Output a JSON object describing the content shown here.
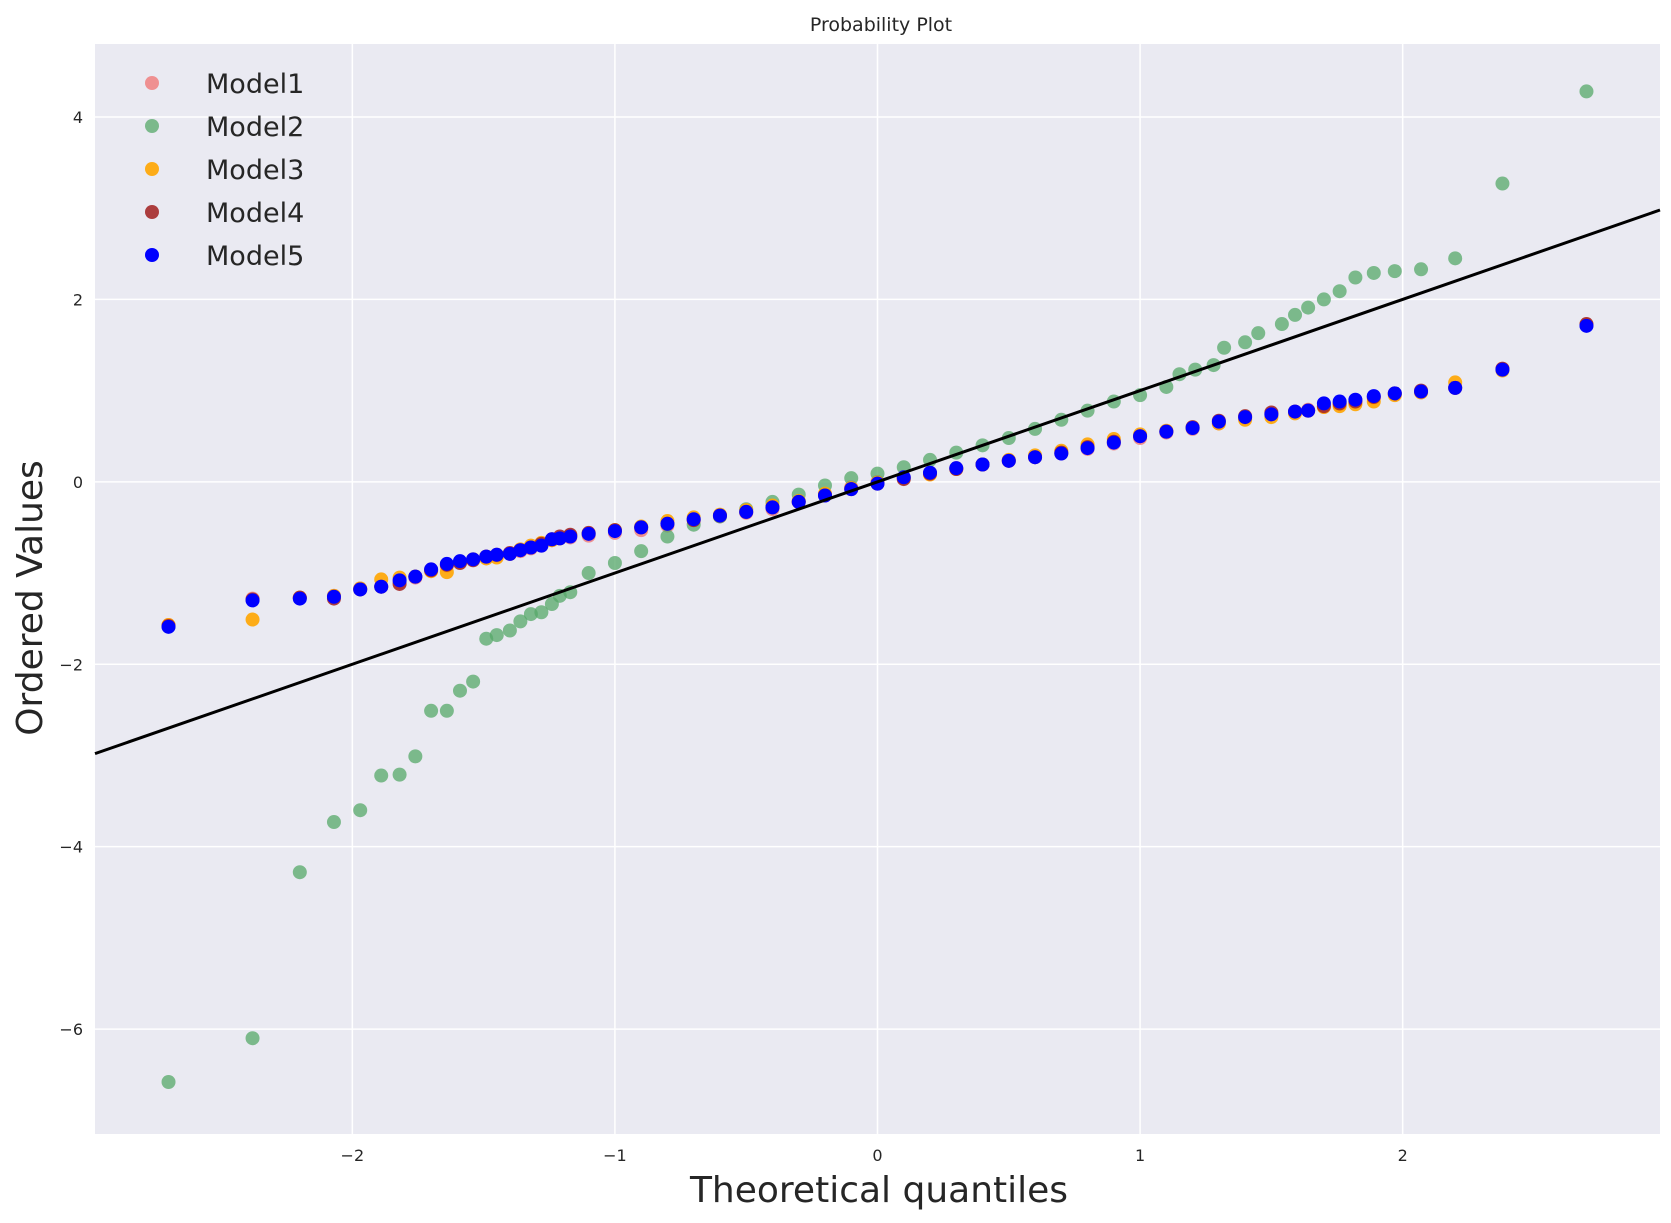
{
  "chart_data": {
    "type": "scatter",
    "title": "Probability Plot",
    "xlabel": "Theoretical quantiles",
    "ylabel": "Ordered Values",
    "xlim": [
      -2.98,
      2.98
    ],
    "ylim": [
      -7.15,
      4.8
    ],
    "xticks": [
      -2,
      -1,
      0,
      1,
      2
    ],
    "xtick_labels": [
      "−2",
      "−1",
      "0",
      "1",
      "2"
    ],
    "yticks": [
      -6,
      -4,
      -2,
      0,
      2,
      4
    ],
    "ytick_labels": [
      "−6",
      "−4",
      "−2",
      "0",
      "2",
      "4"
    ],
    "grid": true,
    "legend_position": "top-left",
    "background": "#eaeaf2",
    "fit_line": {
      "slope": 1.0,
      "intercept": 0.0,
      "color": "#000000"
    },
    "series": [
      {
        "name": "Model1",
        "color": "#f08080",
        "points": [
          [
            -2.7,
            -1.57
          ],
          [
            -2.38,
            -1.28
          ],
          [
            -2.2,
            -1.27
          ],
          [
            -2.07,
            -1.25
          ],
          [
            -1.97,
            -1.17
          ],
          [
            -1.89,
            -1.15
          ],
          [
            -1.82,
            -1.1
          ],
          [
            -1.76,
            -1.05
          ],
          [
            -1.7,
            -0.96
          ],
          [
            -1.64,
            -0.92
          ],
          [
            -1.59,
            -0.88
          ],
          [
            -1.54,
            -0.85
          ],
          [
            -1.49,
            -0.82
          ],
          [
            -1.45,
            -0.81
          ],
          [
            -1.4,
            -0.79
          ],
          [
            -1.36,
            -0.76
          ],
          [
            -1.32,
            -0.73
          ],
          [
            -1.28,
            -0.7
          ],
          [
            -1.24,
            -0.64
          ],
          [
            -1.21,
            -0.62
          ],
          [
            -1.17,
            -0.61
          ],
          [
            -1.1,
            -0.59
          ],
          [
            -1.0,
            -0.56
          ],
          [
            -0.9,
            -0.53
          ],
          [
            -0.8,
            -0.48
          ],
          [
            -0.7,
            -0.42
          ],
          [
            -0.6,
            -0.38
          ],
          [
            -0.5,
            -0.34
          ],
          [
            -0.4,
            -0.3
          ],
          [
            -0.3,
            -0.22
          ],
          [
            -0.2,
            -0.14
          ],
          [
            -0.1,
            -0.06
          ],
          [
            0.0,
            0.0
          ],
          [
            0.1,
            0.05
          ],
          [
            0.2,
            0.1
          ],
          [
            0.3,
            0.15
          ],
          [
            0.4,
            0.19
          ],
          [
            0.5,
            0.23
          ],
          [
            0.6,
            0.27
          ],
          [
            0.7,
            0.31
          ],
          [
            0.8,
            0.36
          ],
          [
            0.9,
            0.42
          ],
          [
            1.0,
            0.48
          ],
          [
            1.1,
            0.54
          ],
          [
            1.2,
            0.58
          ],
          [
            1.3,
            0.64
          ],
          [
            1.4,
            0.7
          ],
          [
            1.5,
            0.74
          ],
          [
            1.59,
            0.77
          ],
          [
            1.64,
            0.79
          ],
          [
            1.7,
            0.82
          ],
          [
            1.76,
            0.85
          ],
          [
            1.82,
            0.88
          ],
          [
            1.89,
            0.92
          ],
          [
            1.97,
            0.96
          ],
          [
            2.07,
            0.98
          ],
          [
            2.2,
            1.03
          ],
          [
            2.38,
            1.24
          ],
          [
            2.7,
            1.72
          ]
        ]
      },
      {
        "name": "Model2",
        "color": "#55a868",
        "points": [
          [
            -2.7,
            -6.58
          ],
          [
            -2.38,
            -6.1
          ],
          [
            -2.2,
            -4.28
          ],
          [
            -2.07,
            -3.73
          ],
          [
            -1.97,
            -3.6
          ],
          [
            -1.89,
            -3.22
          ],
          [
            -1.82,
            -3.21
          ],
          [
            -1.76,
            -3.01
          ],
          [
            -1.7,
            -2.51
          ],
          [
            -1.64,
            -2.51
          ],
          [
            -1.59,
            -2.29
          ],
          [
            -1.54,
            -2.19
          ],
          [
            -1.49,
            -1.72
          ],
          [
            -1.45,
            -1.68
          ],
          [
            -1.4,
            -1.63
          ],
          [
            -1.36,
            -1.53
          ],
          [
            -1.32,
            -1.45
          ],
          [
            -1.28,
            -1.43
          ],
          [
            -1.24,
            -1.34
          ],
          [
            -1.21,
            -1.25
          ],
          [
            -1.17,
            -1.21
          ],
          [
            -1.1,
            -1.0
          ],
          [
            -1.0,
            -0.89
          ],
          [
            -0.9,
            -0.76
          ],
          [
            -0.8,
            -0.6
          ],
          [
            -0.7,
            -0.47
          ],
          [
            -0.6,
            -0.38
          ],
          [
            -0.5,
            -0.3
          ],
          [
            -0.4,
            -0.22
          ],
          [
            -0.3,
            -0.14
          ],
          [
            -0.2,
            -0.04
          ],
          [
            -0.1,
            0.04
          ],
          [
            0.0,
            0.09
          ],
          [
            0.1,
            0.16
          ],
          [
            0.2,
            0.24
          ],
          [
            0.3,
            0.32
          ],
          [
            0.4,
            0.4
          ],
          [
            0.5,
            0.48
          ],
          [
            0.6,
            0.58
          ],
          [
            0.7,
            0.68
          ],
          [
            0.8,
            0.78
          ],
          [
            0.9,
            0.88
          ],
          [
            1.0,
            0.95
          ],
          [
            1.1,
            1.04
          ],
          [
            1.15,
            1.18
          ],
          [
            1.21,
            1.23
          ],
          [
            1.28,
            1.28
          ],
          [
            1.32,
            1.47
          ],
          [
            1.4,
            1.53
          ],
          [
            1.45,
            1.63
          ],
          [
            1.54,
            1.73
          ],
          [
            1.59,
            1.83
          ],
          [
            1.64,
            1.91
          ],
          [
            1.7,
            2.0
          ],
          [
            1.76,
            2.09
          ],
          [
            1.82,
            2.24
          ],
          [
            1.89,
            2.29
          ],
          [
            1.97,
            2.31
          ],
          [
            2.07,
            2.33
          ],
          [
            2.2,
            2.45
          ],
          [
            2.38,
            3.27
          ],
          [
            2.7,
            4.28
          ]
        ]
      },
      {
        "name": "Model3",
        "color": "#ffa500",
        "points": [
          [
            -2.7,
            -1.57
          ],
          [
            -2.38,
            -1.51
          ],
          [
            -2.2,
            -1.27
          ],
          [
            -2.07,
            -1.25
          ],
          [
            -1.97,
            -1.17
          ],
          [
            -1.89,
            -1.07
          ],
          [
            -1.82,
            -1.05
          ],
          [
            -1.76,
            -1.04
          ],
          [
            -1.7,
            -0.98
          ],
          [
            -1.64,
            -0.99
          ],
          [
            -1.59,
            -0.88
          ],
          [
            -1.54,
            -0.85
          ],
          [
            -1.49,
            -0.84
          ],
          [
            -1.45,
            -0.83
          ],
          [
            -1.4,
            -0.79
          ],
          [
            -1.36,
            -0.74
          ],
          [
            -1.32,
            -0.7
          ],
          [
            -1.28,
            -0.67
          ],
          [
            -1.24,
            -0.64
          ],
          [
            -1.21,
            -0.62
          ],
          [
            -1.17,
            -0.59
          ],
          [
            -1.1,
            -0.57
          ],
          [
            -1.0,
            -0.53
          ],
          [
            -0.9,
            -0.49
          ],
          [
            -0.8,
            -0.43
          ],
          [
            -0.7,
            -0.39
          ],
          [
            -0.6,
            -0.36
          ],
          [
            -0.5,
            -0.31
          ],
          [
            -0.4,
            -0.26
          ],
          [
            -0.3,
            -0.21
          ],
          [
            -0.2,
            -0.13
          ],
          [
            -0.1,
            -0.07
          ],
          [
            0.0,
            -0.01
          ],
          [
            0.1,
            0.04
          ],
          [
            0.2,
            0.08
          ],
          [
            0.3,
            0.14
          ],
          [
            0.4,
            0.19
          ],
          [
            0.5,
            0.24
          ],
          [
            0.6,
            0.29
          ],
          [
            0.7,
            0.34
          ],
          [
            0.8,
            0.41
          ],
          [
            0.9,
            0.47
          ],
          [
            1.0,
            0.52
          ],
          [
            1.1,
            0.56
          ],
          [
            1.2,
            0.59
          ],
          [
            1.3,
            0.64
          ],
          [
            1.4,
            0.68
          ],
          [
            1.5,
            0.71
          ],
          [
            1.59,
            0.75
          ],
          [
            1.64,
            0.78
          ],
          [
            1.7,
            0.82
          ],
          [
            1.76,
            0.83
          ],
          [
            1.82,
            0.85
          ],
          [
            1.89,
            0.88
          ],
          [
            1.97,
            0.95
          ],
          [
            2.07,
            0.98
          ],
          [
            2.2,
            1.09
          ],
          [
            2.38,
            1.22
          ],
          [
            2.7,
            1.72
          ]
        ]
      },
      {
        "name": "Model4",
        "color": "#a52a2a",
        "points": [
          [
            -2.7,
            -1.58
          ],
          [
            -2.38,
            -1.29
          ],
          [
            -2.2,
            -1.27
          ],
          [
            -2.07,
            -1.28
          ],
          [
            -1.97,
            -1.18
          ],
          [
            -1.89,
            -1.15
          ],
          [
            -1.82,
            -1.12
          ],
          [
            -1.76,
            -1.04
          ],
          [
            -1.7,
            -0.97
          ],
          [
            -1.64,
            -0.91
          ],
          [
            -1.59,
            -0.89
          ],
          [
            -1.54,
            -0.86
          ],
          [
            -1.49,
            -0.82
          ],
          [
            -1.45,
            -0.8
          ],
          [
            -1.4,
            -0.78
          ],
          [
            -1.36,
            -0.75
          ],
          [
            -1.32,
            -0.72
          ],
          [
            -1.28,
            -0.68
          ],
          [
            -1.24,
            -0.63
          ],
          [
            -1.21,
            -0.6
          ],
          [
            -1.17,
            -0.58
          ],
          [
            -1.1,
            -0.56
          ],
          [
            -1.0,
            -0.53
          ],
          [
            -0.9,
            -0.5
          ],
          [
            -0.8,
            -0.46
          ],
          [
            -0.7,
            -0.42
          ],
          [
            -0.6,
            -0.37
          ],
          [
            -0.5,
            -0.33
          ],
          [
            -0.4,
            -0.28
          ],
          [
            -0.3,
            -0.22
          ],
          [
            -0.2,
            -0.15
          ],
          [
            -0.1,
            -0.08
          ],
          [
            0.0,
            -0.02
          ],
          [
            0.1,
            0.03
          ],
          [
            0.2,
            0.09
          ],
          [
            0.3,
            0.14
          ],
          [
            0.4,
            0.19
          ],
          [
            0.5,
            0.23
          ],
          [
            0.6,
            0.27
          ],
          [
            0.7,
            0.32
          ],
          [
            0.8,
            0.38
          ],
          [
            0.9,
            0.44
          ],
          [
            1.0,
            0.5
          ],
          [
            1.1,
            0.55
          ],
          [
            1.2,
            0.6
          ],
          [
            1.3,
            0.67
          ],
          [
            1.4,
            0.72
          ],
          [
            1.5,
            0.76
          ],
          [
            1.59,
            0.77
          ],
          [
            1.64,
            0.78
          ],
          [
            1.7,
            0.83
          ],
          [
            1.76,
            0.86
          ],
          [
            1.82,
            0.88
          ],
          [
            1.89,
            0.93
          ],
          [
            1.97,
            0.97
          ],
          [
            2.07,
            1.0
          ],
          [
            2.2,
            1.03
          ],
          [
            2.38,
            1.24
          ],
          [
            2.7,
            1.73
          ]
        ]
      },
      {
        "name": "Model5",
        "color": "#0000ff",
        "points": [
          [
            -2.7,
            -1.59
          ],
          [
            -2.38,
            -1.3
          ],
          [
            -2.2,
            -1.28
          ],
          [
            -2.07,
            -1.26
          ],
          [
            -1.97,
            -1.18
          ],
          [
            -1.89,
            -1.15
          ],
          [
            -1.82,
            -1.08
          ],
          [
            -1.76,
            -1.04
          ],
          [
            -1.7,
            -0.96
          ],
          [
            -1.64,
            -0.9
          ],
          [
            -1.59,
            -0.87
          ],
          [
            -1.54,
            -0.85
          ],
          [
            -1.49,
            -0.82
          ],
          [
            -1.45,
            -0.8
          ],
          [
            -1.4,
            -0.79
          ],
          [
            -1.36,
            -0.75
          ],
          [
            -1.32,
            -0.72
          ],
          [
            -1.28,
            -0.7
          ],
          [
            -1.24,
            -0.63
          ],
          [
            -1.21,
            -0.62
          ],
          [
            -1.17,
            -0.6
          ],
          [
            -1.1,
            -0.57
          ],
          [
            -1.0,
            -0.54
          ],
          [
            -0.9,
            -0.5
          ],
          [
            -0.8,
            -0.46
          ],
          [
            -0.7,
            -0.41
          ],
          [
            -0.6,
            -0.37
          ],
          [
            -0.5,
            -0.33
          ],
          [
            -0.4,
            -0.28
          ],
          [
            -0.3,
            -0.22
          ],
          [
            -0.2,
            -0.15
          ],
          [
            -0.1,
            -0.08
          ],
          [
            0.0,
            -0.02
          ],
          [
            0.1,
            0.05
          ],
          [
            0.2,
            0.1
          ],
          [
            0.3,
            0.15
          ],
          [
            0.4,
            0.19
          ],
          [
            0.5,
            0.23
          ],
          [
            0.6,
            0.27
          ],
          [
            0.7,
            0.31
          ],
          [
            0.8,
            0.37
          ],
          [
            0.9,
            0.43
          ],
          [
            1.0,
            0.5
          ],
          [
            1.1,
            0.55
          ],
          [
            1.2,
            0.59
          ],
          [
            1.3,
            0.66
          ],
          [
            1.4,
            0.71
          ],
          [
            1.5,
            0.74
          ],
          [
            1.59,
            0.77
          ],
          [
            1.64,
            0.78
          ],
          [
            1.7,
            0.86
          ],
          [
            1.76,
            0.88
          ],
          [
            1.82,
            0.9
          ],
          [
            1.89,
            0.94
          ],
          [
            1.97,
            0.97
          ],
          [
            2.07,
            0.99
          ],
          [
            2.2,
            1.03
          ],
          [
            2.38,
            1.23
          ],
          [
            2.7,
            1.71
          ]
        ]
      }
    ]
  }
}
